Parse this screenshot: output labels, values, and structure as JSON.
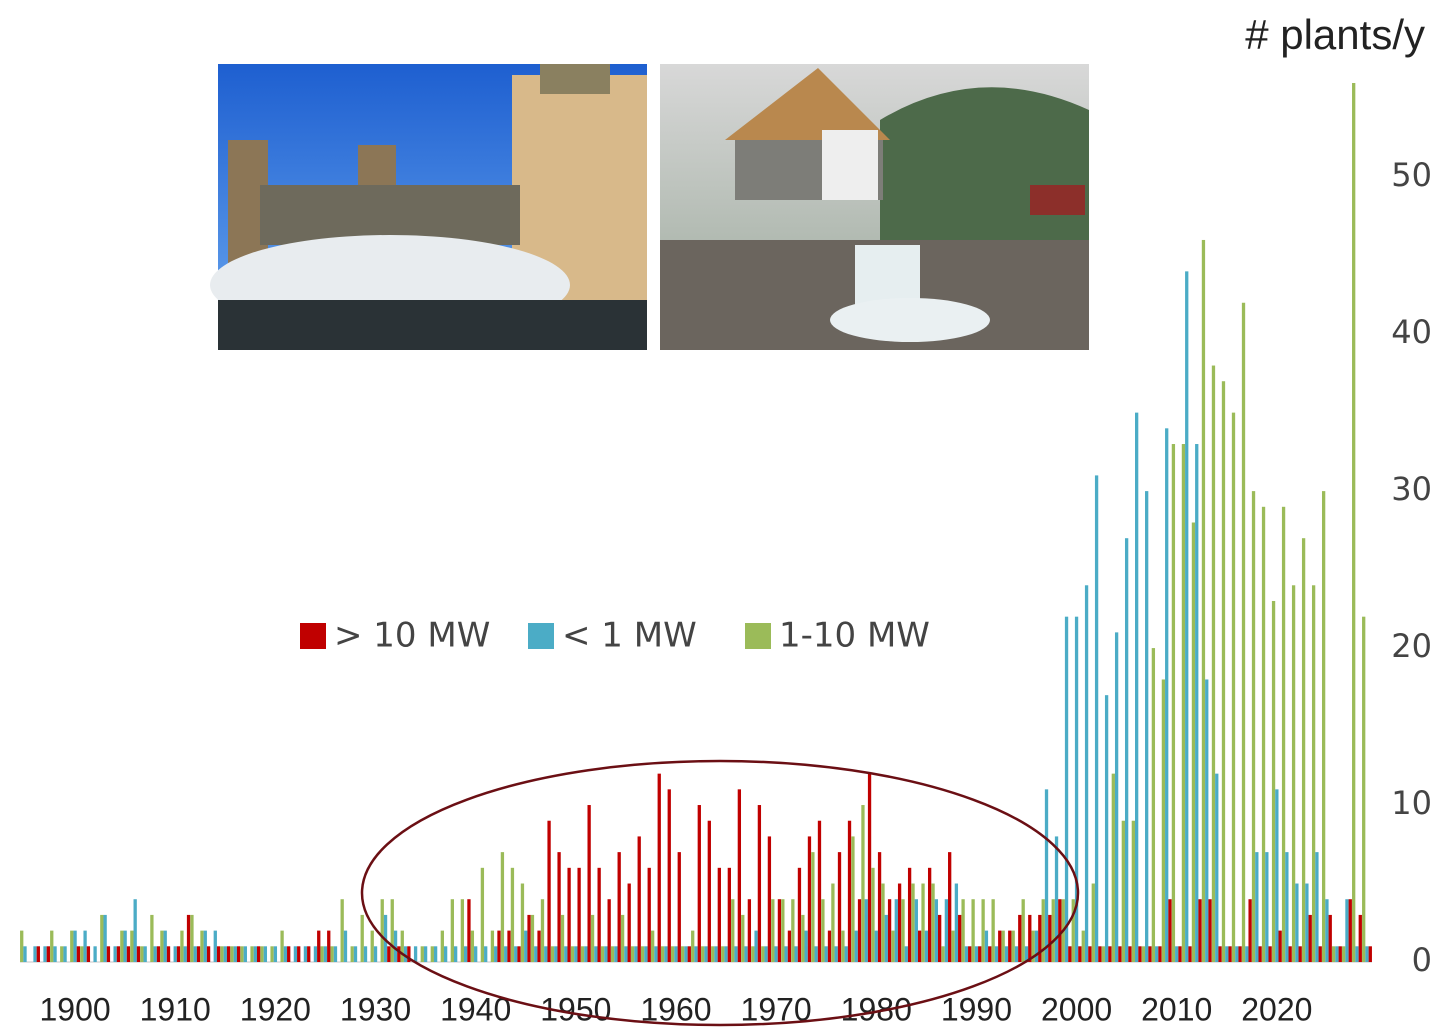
{
  "chart_data": {
    "type": "bar",
    "title": "# plants/y",
    "categories": [
      null,
      null,
      null,
      null,
      null,
      "1900",
      null,
      null,
      null,
      null,
      null,
      null,
      null,
      null,
      null,
      "1910",
      null,
      null,
      null,
      null,
      null,
      null,
      null,
      null,
      null,
      "1920",
      null,
      null,
      null,
      null,
      null,
      null,
      null,
      null,
      null,
      "1930",
      null,
      null,
      null,
      null,
      null,
      null,
      null,
      null,
      null,
      "1940",
      null,
      null,
      null,
      null,
      null,
      null,
      null,
      null,
      null,
      "1950",
      null,
      null,
      null,
      null,
      null,
      null,
      null,
      null,
      null,
      "1960",
      null,
      null,
      null,
      null,
      null,
      null,
      null,
      null,
      null,
      "1970",
      null,
      null,
      null,
      null,
      null,
      null,
      null,
      null,
      null,
      "1980",
      null,
      null,
      null,
      null,
      null,
      null,
      null,
      null,
      null,
      "1990",
      null,
      null,
      null,
      null,
      null,
      null,
      null,
      null,
      null,
      "2000",
      null,
      null,
      null,
      null,
      null,
      null,
      null,
      null,
      null,
      "2010",
      null,
      null,
      null,
      null,
      null,
      null,
      null,
      null,
      null,
      "2020",
      null,
      null,
      null,
      null,
      null,
      null,
      null,
      null,
      null
    ],
    "series": [
      {
        "name": "> 10 MW",
        "color": "#c00000",
        "values": [
          0,
          1,
          1,
          0,
          0,
          1,
          1,
          0,
          1,
          1,
          1,
          1,
          0,
          1,
          1,
          1,
          3,
          1,
          1,
          1,
          1,
          1,
          0,
          1,
          0,
          0,
          1,
          1,
          1,
          2,
          2,
          0,
          0,
          0,
          0,
          0,
          1,
          1,
          1,
          0,
          0,
          0,
          0,
          0,
          4,
          0,
          0,
          2,
          2,
          1,
          3,
          2,
          9,
          7,
          6,
          6,
          10,
          6,
          4,
          7,
          5,
          8,
          6,
          12,
          11,
          7,
          1,
          10,
          9,
          6,
          6,
          11,
          4,
          10,
          8,
          4,
          2,
          6,
          8,
          9,
          2,
          7,
          9,
          4,
          12,
          7,
          4,
          5,
          6,
          2,
          6,
          3,
          7,
          3,
          1,
          1,
          1,
          2,
          2,
          3,
          3,
          3,
          3,
          4,
          1,
          1,
          1,
          1,
          1,
          1,
          1,
          1,
          1,
          1,
          4,
          1,
          1,
          4,
          4,
          1,
          1,
          1,
          4,
          1,
          1,
          2,
          1,
          1,
          3,
          1,
          3,
          1,
          4,
          3,
          1
        ]
      },
      {
        "name": "< 1 MW",
        "color": "#4bacc6",
        "values": [
          1,
          1,
          1,
          1,
          1,
          2,
          2,
          1,
          3,
          1,
          2,
          4,
          1,
          1,
          2,
          1,
          1,
          1,
          2,
          2,
          1,
          1,
          1,
          1,
          1,
          1,
          1,
          1,
          1,
          1,
          1,
          1,
          2,
          1,
          1,
          1,
          3,
          2,
          1,
          1,
          1,
          1,
          1,
          1,
          1,
          1,
          1,
          1,
          1,
          1,
          2,
          1,
          1,
          1,
          1,
          1,
          1,
          1,
          1,
          1,
          1,
          1,
          1,
          1,
          1,
          1,
          1,
          1,
          1,
          1,
          1,
          1,
          1,
          2,
          1,
          1,
          1,
          1,
          2,
          1,
          1,
          1,
          1,
          2,
          4,
          2,
          3,
          4,
          1,
          4,
          2,
          4,
          4,
          5,
          1,
          1,
          2,
          1,
          1,
          1,
          1,
          2,
          11,
          8,
          22,
          22,
          24,
          31,
          17,
          21,
          27,
          35,
          30,
          1,
          34,
          1,
          44,
          33,
          18,
          12,
          1,
          1,
          1,
          7,
          7,
          11,
          7,
          5,
          5,
          7,
          4,
          1,
          4,
          1,
          1
        ]
      },
      {
        "name": "1-10 MW",
        "color": "#9bbb59",
        "values": [
          2,
          0,
          0,
          2,
          1,
          2,
          1,
          0,
          3,
          0,
          2,
          2,
          1,
          3,
          2,
          0,
          2,
          3,
          2,
          0,
          1,
          1,
          1,
          1,
          1,
          1,
          2,
          0,
          0,
          0,
          1,
          1,
          4,
          1,
          3,
          2,
          4,
          4,
          2,
          0,
          1,
          1,
          2,
          4,
          4,
          2,
          6,
          2,
          7,
          6,
          5,
          3,
          4,
          1,
          3,
          1,
          1,
          3,
          1,
          1,
          3,
          1,
          1,
          2,
          1,
          1,
          1,
          2,
          1,
          1,
          1,
          4,
          3,
          1,
          1,
          4,
          4,
          4,
          3,
          7,
          4,
          5,
          2,
          8,
          10,
          6,
          5,
          2,
          4,
          5,
          5,
          5,
          1,
          2,
          4,
          4,
          4,
          4,
          2,
          2,
          4,
          2,
          4,
          4,
          4,
          4,
          2,
          5,
          1,
          12,
          9,
          9,
          1,
          20,
          18,
          33,
          33,
          28,
          46,
          38,
          37,
          35,
          42,
          30,
          29,
          23,
          29,
          24,
          27,
          24,
          30,
          1,
          1,
          56,
          22
        ]
      }
    ],
    "ylim": [
      0,
      56
    ],
    "yticks": [
      0,
      10,
      20,
      30,
      40,
      50
    ]
  }
}
